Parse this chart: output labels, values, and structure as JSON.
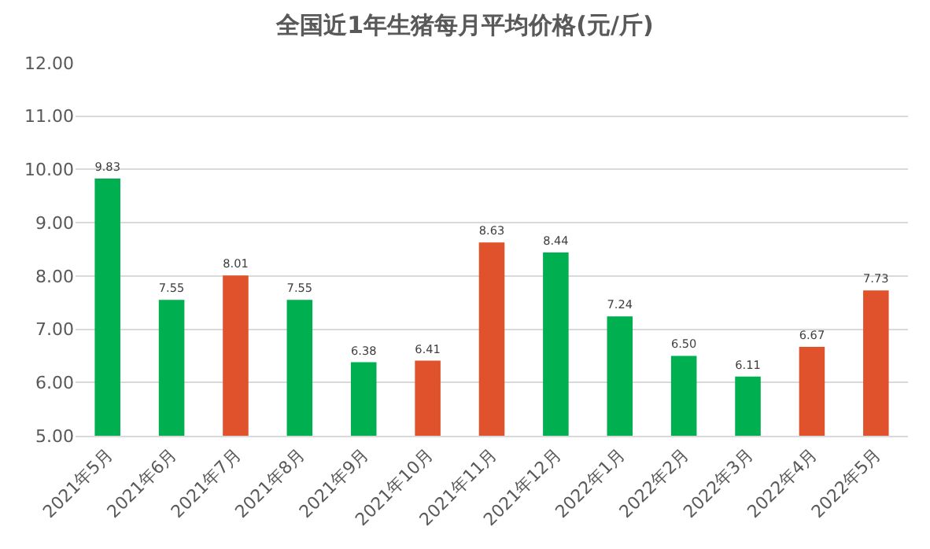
{
  "chart_data": {
    "type": "bar",
    "title": "全国近1年生猪每月平均价格(元/斤)",
    "categories": [
      "2021年5月",
      "2021年6月",
      "2021年7月",
      "2021年8月",
      "2021年9月",
      "2021年10月",
      "2021年11月",
      "2021年12月",
      "2022年1月",
      "2022年2月",
      "2022年3月",
      "2022年4月",
      "2022年5月"
    ],
    "values": [
      9.83,
      7.55,
      8.01,
      7.55,
      6.38,
      6.41,
      8.63,
      8.44,
      7.24,
      6.5,
      6.11,
      6.67,
      7.73
    ],
    "value_labels": [
      "9.83",
      "7.55",
      "8.01",
      "7.55",
      "6.38",
      "6.41",
      "8.63",
      "8.44",
      "7.24",
      "6.50",
      "6.11",
      "6.67",
      "7.73"
    ],
    "colors": [
      "#00b050",
      "#00b050",
      "#e0522b",
      "#00b050",
      "#00b050",
      "#e0522b",
      "#e0522b",
      "#00b050",
      "#00b050",
      "#00b050",
      "#00b050",
      "#e0522b",
      "#e0522b"
    ],
    "ylim": [
      5,
      12
    ],
    "yticks": [
      {
        "value": 5,
        "label": "5.00"
      },
      {
        "value": 6,
        "label": "6.00"
      },
      {
        "value": 7,
        "label": "7.00"
      },
      {
        "value": 8,
        "label": "8.00"
      },
      {
        "value": 9,
        "label": "9.00"
      },
      {
        "value": 10,
        "label": "10.00"
      },
      {
        "value": 11,
        "label": "11.00"
      },
      {
        "value": 12,
        "label": "12.00"
      }
    ],
    "grid": "y",
    "legend": false
  }
}
